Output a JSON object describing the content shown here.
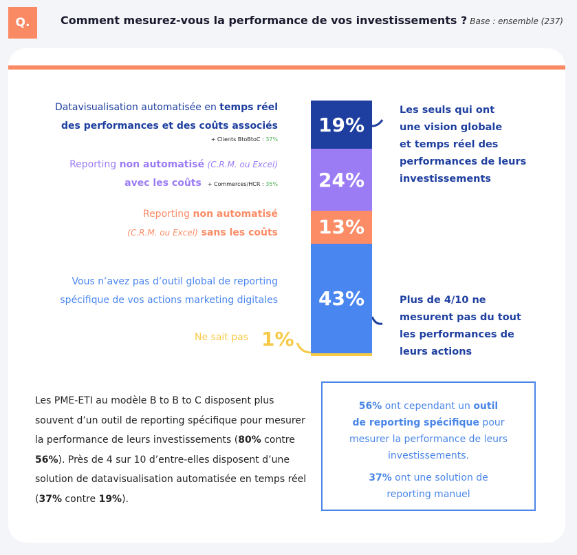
{
  "header": {
    "badge": "Q.",
    "question": "Comment mesurez-vous la performance de vos investissements ?",
    "base": "Base : ensemble (237)"
  },
  "labels": {
    "l1_a": "Datavisualisation automatisée en ",
    "l1_b": "temps réel",
    "l1_c": "des performances et des coûts associés",
    "l1_note_a": "+ Clients BtoBtoC : ",
    "l1_note_b": "37%",
    "l2_a": "Reporting ",
    "l2_b": "non automatisé",
    "l2_c": "(C.R.M. ou Excel)",
    "l2_d": "avec les coûts",
    "l2_note_a": "+ Commerces/HCR : ",
    "l2_note_b": "35%",
    "l3_a": "Reporting ",
    "l3_b": "non automatisé",
    "l3_c": "(C.R.M. ou Excel)",
    "l3_d": " sans les coûts",
    "l4_a": "Vous n’avez pas d’outil global de reporting",
    "l4_b": "spécifique de vos actions marketing digitales",
    "l5": "Ne sait pas",
    "l5_value": "1%"
  },
  "annotations": {
    "top": [
      "Les seuls qui ont",
      "une vision globale",
      "et temps réel des",
      "performances de leurs",
      "investissements"
    ],
    "bottom": [
      "Plus de 4/10 ne",
      "mesurent pas du tout",
      "les performances de",
      "leurs actions"
    ]
  },
  "paragraph": {
    "t1": "Les PME-ETI au modèle B to B to C disposent plus souvent d’un outil de reporting spécifique pour mesurer la performance de leurs investissements (",
    "b1": "80%",
    "t2": " contre ",
    "b2": "56%",
    "t3": "). Près de 4 sur 10 d’entre-elles disposent d’une solution de datavisualisation automatisée en temps réel (",
    "b3": "37%",
    "t4": " contre ",
    "b4": "19%",
    "t5": ")."
  },
  "box": {
    "a1": "56%",
    "a2": " ont cependant un ",
    "a3": "outil",
    "a4": "de reporting spécifique",
    "a5": " pour",
    "a6": "mesurer la performance de leurs",
    "a7": "investissements.",
    "b1": "37%",
    "b2": " ont une solution de",
    "b3": "reporting manuel"
  },
  "colors": {
    "orange": "#fa8a64",
    "dark_blue": "#1e3f9f",
    "purple": "#9b7cf5",
    "salmon": "#fb8c66",
    "blue": "#4a86f0",
    "yellow": "#f7c948"
  },
  "chart_data": {
    "type": "bar",
    "stacked": true,
    "categories": [
      "Datavisualisation automatisée en temps réel des performances et des coûts associés",
      "Reporting non automatisé (C.R.M. ou Excel) avec les coûts",
      "Reporting non automatisé (C.R.M. ou Excel) sans les coûts",
      "Vous n’avez pas d’outil global de reporting spécifique de vos actions marketing digitales",
      "Ne sait pas"
    ],
    "values": [
      19,
      24,
      13,
      43,
      1
    ],
    "value_labels": [
      "19%",
      "24%",
      "13%",
      "43%",
      "1%"
    ],
    "colors": [
      "#1e3f9f",
      "#9b7cf5",
      "#fb8c66",
      "#4a86f0",
      "#f7c948"
    ]
  }
}
